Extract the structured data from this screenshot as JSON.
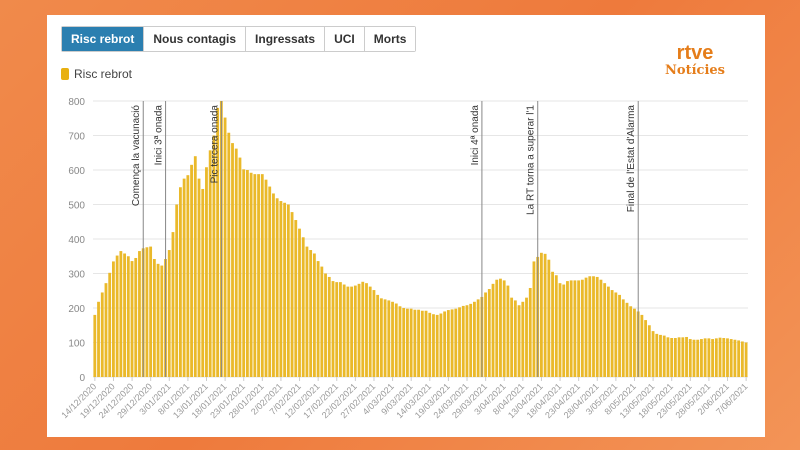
{
  "tabs": [
    {
      "label": "Risc rebrot",
      "active": true
    },
    {
      "label": "Nous contagis"
    },
    {
      "label": "Ingressats"
    },
    {
      "label": "UCI"
    },
    {
      "label": "Morts"
    }
  ],
  "logo": {
    "brand": "rtve",
    "section": "Notícies",
    "color": "#e57d1a"
  },
  "chart_data": {
    "type": "bar",
    "legend": [
      {
        "name": "Risc rebrot",
        "color": "#e8b010"
      }
    ],
    "legend_position": "top-left",
    "ylim": [
      0,
      800
    ],
    "yticks": [
      0,
      100,
      200,
      300,
      400,
      500,
      600,
      700,
      800
    ],
    "grid": true,
    "x_start": "14/12/2020",
    "xticks": [
      "14/12/2020",
      "19/12/2020",
      "24/12/2020",
      "29/12/2020",
      "3/01/2021",
      "8/01/2021",
      "13/01/2021",
      "18/01/2021",
      "23/01/2021",
      "28/01/2021",
      "2/02/2021",
      "7/02/2021",
      "12/02/2021",
      "17/02/2021",
      "22/02/2021",
      "27/02/2021",
      "4/03/2021",
      "9/03/2021",
      "14/03/2021",
      "19/03/2021",
      "24/03/2021",
      "29/03/2021",
      "3/04/2021",
      "8/04/2021",
      "13/04/2021",
      "18/04/2021",
      "23/04/2021",
      "28/04/2021",
      "3/05/2021",
      "8/05/2021",
      "13/05/2021",
      "18/05/2021",
      "23/05/2021",
      "28/05/2021",
      "2/06/2021",
      "7/06/2021"
    ],
    "values": [
      180,
      218,
      245,
      272,
      302,
      335,
      352,
      365,
      358,
      350,
      336,
      345,
      365,
      373,
      376,
      378,
      342,
      328,
      323,
      342,
      368,
      420,
      500,
      550,
      575,
      585,
      615,
      640,
      575,
      545,
      608,
      657,
      700,
      780,
      800,
      752,
      708,
      678,
      662,
      636,
      602,
      600,
      592,
      588,
      588,
      588,
      572,
      552,
      532,
      518,
      510,
      505,
      500,
      478,
      455,
      430,
      405,
      378,
      368,
      358,
      336,
      320,
      300,
      290,
      278,
      275,
      275,
      268,
      262,
      262,
      265,
      270,
      276,
      272,
      262,
      252,
      238,
      228,
      225,
      222,
      218,
      213,
      205,
      200,
      198,
      198,
      195,
      195,
      192,
      192,
      186,
      182,
      180,
      184,
      190,
      194,
      196,
      198,
      202,
      206,
      208,
      212,
      218,
      225,
      232,
      245,
      255,
      270,
      282,
      285,
      280,
      265,
      230,
      222,
      208,
      218,
      230,
      258,
      335,
      348,
      360,
      357,
      340,
      305,
      295,
      272,
      268,
      278,
      280,
      280,
      280,
      282,
      288,
      292,
      292,
      290,
      282,
      272,
      262,
      252,
      245,
      238,
      225,
      215,
      205,
      198,
      190,
      180,
      165,
      150,
      133,
      125,
      122,
      120,
      115,
      113,
      113,
      115,
      115,
      116,
      110,
      108,
      108,
      110,
      112,
      112,
      110,
      112,
      114,
      113,
      112,
      110,
      108,
      106,
      103,
      100
    ],
    "annotations": [
      {
        "label": "Comença la vacunació",
        "date_index": 13
      },
      {
        "label": "Inici 3ª onada",
        "date_index": 19
      },
      {
        "label": "Pic tercera onada",
        "date_index": 34
      },
      {
        "label": "Inici 4ª onada",
        "date_index": 104
      },
      {
        "label": "La RT torna a superar l'1",
        "date_index": 119
      },
      {
        "label": "Final de l'Estat d'Alarma",
        "date_index": 146
      }
    ]
  }
}
